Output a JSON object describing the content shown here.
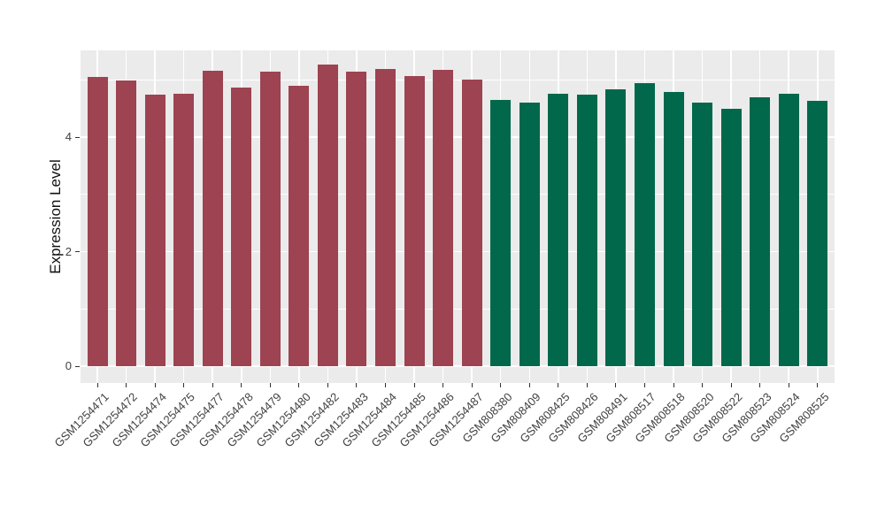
{
  "chart_data": {
    "type": "bar",
    "title": "",
    "xlabel": "",
    "ylabel": "Expression Level",
    "ylim": [
      0,
      5.5
    ],
    "yticks": [
      0,
      2,
      4
    ],
    "yticks_minor": [
      1,
      3,
      5
    ],
    "grid": true,
    "legend_position": "none",
    "colors": {
      "panel_background": "#EBEBEB",
      "gridline": "#FFFFFF",
      "tick_mark": "#333333",
      "axis_text": "#404040",
      "axis_title": "#111111",
      "group1_bar": "#9D4351",
      "group2_bar": "#02684B"
    },
    "series": [
      {
        "color": "#9D4351",
        "categories": [
          "GSM1254471",
          "GSM1254472",
          "GSM1254474",
          "GSM1254475",
          "GSM1254477",
          "GSM1254478",
          "GSM1254479",
          "GSM1254480",
          "GSM1254482",
          "GSM1254483",
          "GSM1254484",
          "GSM1254485",
          "GSM1254486",
          "GSM1254487"
        ],
        "values": [
          5.05,
          4.99,
          4.74,
          4.76,
          5.16,
          4.87,
          5.14,
          4.9,
          5.26,
          5.15,
          5.19,
          5.06,
          5.17,
          5.0
        ]
      },
      {
        "color": "#02684B",
        "categories": [
          "GSM808380",
          "GSM808409",
          "GSM808425",
          "GSM808426",
          "GSM808491",
          "GSM808517",
          "GSM808518",
          "GSM808520",
          "GSM808522",
          "GSM808523",
          "GSM808524",
          "GSM808525"
        ],
        "values": [
          4.65,
          4.61,
          4.75,
          4.74,
          4.84,
          4.94,
          4.78,
          4.6,
          4.49,
          4.7,
          4.75,
          4.64
        ]
      }
    ]
  }
}
